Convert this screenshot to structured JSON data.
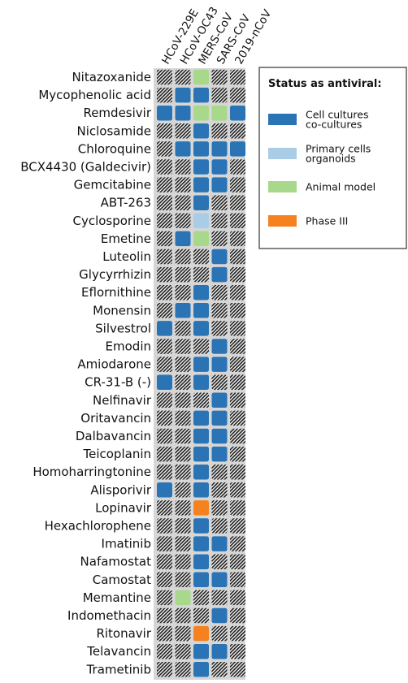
{
  "chart_data": {
    "type": "heatmap",
    "columns": [
      "HCoV-229E",
      "HCoV-OC43",
      "MERS-CoV",
      "SARS-CoV",
      "2019-nCoV"
    ],
    "rows": [
      "Nitazoxanide",
      "Mycophenolic acid",
      "Remdesivir",
      "Niclosamide",
      "Chloroquine",
      "BCX4430 (Galdecivir)",
      "Gemcitabine",
      "ABT-263",
      "Cyclosporine",
      "Emetine",
      "Luteolin",
      "Glycyrrhizin",
      "Eflornithine",
      "Monensin",
      "Silvestrol",
      "Emodin",
      "Amiodarone",
      "CR-31-B (-)",
      "Nelfinavir",
      "Oritavancin",
      "Dalbavancin",
      "Teicoplanin",
      "Homoharringtonine",
      "Alisporivir",
      "Lopinavir",
      "Hexachlorophene",
      "Imatinib",
      "Nafamostat",
      "Camostat",
      "Memantine",
      "Indomethacin",
      "Ritonavir",
      "Telavancin",
      "Trametinib"
    ],
    "legend": {
      "title": "Status as antiviral:",
      "items": [
        {
          "key": "cell",
          "lines": [
            "Cell cultures",
            "co-cultures"
          ],
          "color": "#2a74b5"
        },
        {
          "key": "primary",
          "lines": [
            "Primary cells",
            "organoids"
          ],
          "color": "#a9cde6"
        },
        {
          "key": "animal",
          "lines": [
            "Animal model"
          ],
          "color": "#a8d88a"
        },
        {
          "key": "phase3",
          "lines": [
            "Phase III"
          ],
          "color": "#f5821f"
        }
      ]
    },
    "values": [
      [
        "none",
        "none",
        "animal",
        "none",
        "none"
      ],
      [
        "none",
        "cell",
        "cell",
        "none",
        "none"
      ],
      [
        "cell",
        "cell",
        "animal",
        "animal",
        "cell"
      ],
      [
        "none",
        "none",
        "cell",
        "none",
        "none"
      ],
      [
        "none",
        "cell",
        "cell",
        "cell",
        "cell"
      ],
      [
        "none",
        "none",
        "cell",
        "cell",
        "none"
      ],
      [
        "none",
        "none",
        "cell",
        "cell",
        "none"
      ],
      [
        "none",
        "none",
        "cell",
        "none",
        "none"
      ],
      [
        "none",
        "none",
        "primary",
        "none",
        "none"
      ],
      [
        "none",
        "cell",
        "animal",
        "none",
        "none"
      ],
      [
        "none",
        "none",
        "none",
        "cell",
        "none"
      ],
      [
        "none",
        "none",
        "none",
        "cell",
        "none"
      ],
      [
        "none",
        "none",
        "cell",
        "none",
        "none"
      ],
      [
        "none",
        "cell",
        "cell",
        "none",
        "none"
      ],
      [
        "cell",
        "none",
        "cell",
        "none",
        "none"
      ],
      [
        "none",
        "none",
        "none",
        "cell",
        "none"
      ],
      [
        "none",
        "none",
        "cell",
        "cell",
        "none"
      ],
      [
        "cell",
        "none",
        "cell",
        "none",
        "none"
      ],
      [
        "none",
        "none",
        "none",
        "cell",
        "none"
      ],
      [
        "none",
        "none",
        "cell",
        "cell",
        "none"
      ],
      [
        "none",
        "none",
        "cell",
        "cell",
        "none"
      ],
      [
        "none",
        "none",
        "cell",
        "cell",
        "none"
      ],
      [
        "none",
        "none",
        "cell",
        "none",
        "none"
      ],
      [
        "cell",
        "none",
        "cell",
        "none",
        "none"
      ],
      [
        "none",
        "none",
        "phase3",
        "none",
        "none"
      ],
      [
        "none",
        "none",
        "cell",
        "none",
        "none"
      ],
      [
        "none",
        "none",
        "cell",
        "cell",
        "none"
      ],
      [
        "none",
        "none",
        "cell",
        "none",
        "none"
      ],
      [
        "none",
        "none",
        "cell",
        "cell",
        "none"
      ],
      [
        "none",
        "animal",
        "none",
        "none",
        "none"
      ],
      [
        "none",
        "none",
        "none",
        "cell",
        "none"
      ],
      [
        "none",
        "none",
        "phase3",
        "none",
        "none"
      ],
      [
        "none",
        "none",
        "cell",
        "cell",
        "none"
      ],
      [
        "none",
        "none",
        "cell",
        "none",
        "none"
      ]
    ]
  }
}
